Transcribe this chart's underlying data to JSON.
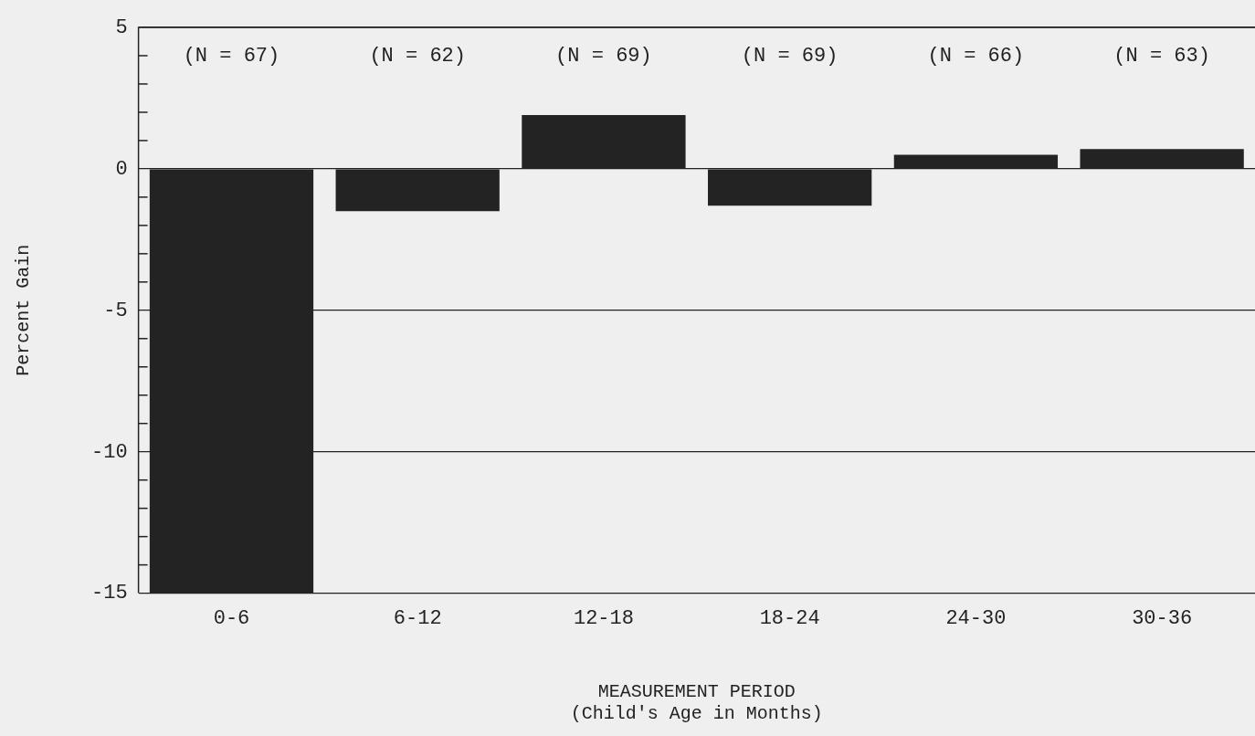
{
  "chart_data": {
    "type": "bar",
    "xlabel": "MEASUREMENT PERIOD\n(Child's Age in Months)",
    "ylabel": "Percent Gain",
    "categories": [
      "0-6",
      "6-12",
      "12-18",
      "18-24",
      "24-30",
      "30-36"
    ],
    "values": [
      -15,
      -1.5,
      1.9,
      -1.3,
      0.5,
      0.7
    ],
    "color": "#232323",
    "ylim": [
      -15,
      5
    ],
    "yticks": [
      -15,
      {
        "value": -14,
        "label": null
      },
      {
        "value": -13,
        "label": null
      },
      {
        "value": -12,
        "label": null
      },
      {
        "value": -11,
        "label": null
      },
      -10,
      {
        "value": -9,
        "label": null
      },
      {
        "value": -8,
        "label": null
      },
      {
        "value": -7,
        "label": null
      },
      {
        "value": -6,
        "label": null
      },
      -5,
      {
        "value": -4,
        "label": null
      },
      {
        "value": -3,
        "label": null
      },
      {
        "value": -2,
        "label": null
      },
      {
        "value": -1,
        "label": null
      },
      0,
      {
        "value": 1,
        "label": null
      },
      {
        "value": 2,
        "label": null
      },
      {
        "value": 3,
        "label": null
      },
      {
        "value": 4,
        "label": null
      },
      5
    ],
    "grid": "y",
    "annotations": [
      "(N = 67)",
      "(N = 62)",
      "(N = 69)",
      "(N = 69)",
      "(N = 66)",
      "(N = 63)"
    ]
  }
}
